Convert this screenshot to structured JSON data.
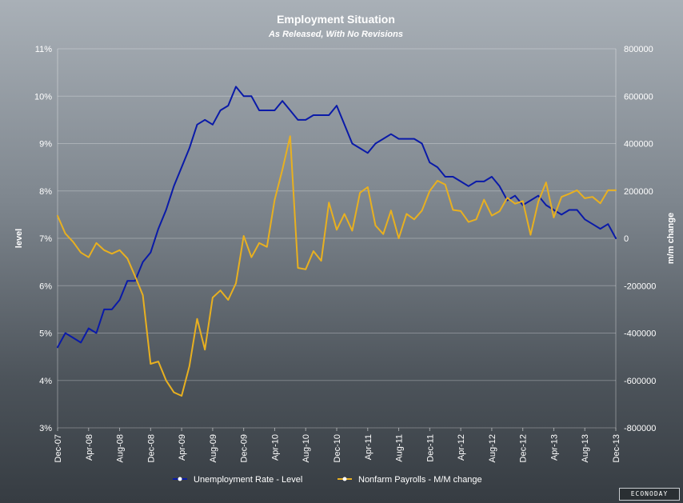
{
  "chart_data": {
    "type": "line",
    "title": "Employment Situation",
    "subtitle": "As Released, With No Revisions",
    "ylabel_left": "level",
    "ylabel_right": "m/m change",
    "ylim_left": [
      3,
      11
    ],
    "ylim_right": [
      -800000,
      800000
    ],
    "yticks_left": [
      "3%",
      "4%",
      "5%",
      "6%",
      "7%",
      "8%",
      "9%",
      "10%",
      "11%"
    ],
    "yticks_right": [
      "-800000",
      "-600000",
      "-400000",
      "-200000",
      "0",
      "200000",
      "400000",
      "600000",
      "800000"
    ],
    "x_ticks": [
      "Dec-07",
      "Apr-08",
      "Aug-08",
      "Dec-08",
      "Apr-09",
      "Aug-09",
      "Dec-09",
      "Apr-10",
      "Aug-10",
      "Dec-10",
      "Apr-11",
      "Aug-11",
      "Dec-11",
      "Apr-12",
      "Aug-12",
      "Dec-12",
      "Apr-13",
      "Aug-13",
      "Dec-13"
    ],
    "x_start": "Dec-07",
    "grid": true,
    "legend_position": "bottom",
    "series": [
      {
        "name": "Unemployment Rate - Level",
        "axis": "left",
        "color": "#0a1aa8",
        "values": [
          4.7,
          5.0,
          4.9,
          4.8,
          5.1,
          5.0,
          5.5,
          5.5,
          5.7,
          6.1,
          6.1,
          6.5,
          6.7,
          7.2,
          7.6,
          8.1,
          8.5,
          8.9,
          9.4,
          9.5,
          9.4,
          9.7,
          9.8,
          10.2,
          10.0,
          10.0,
          9.7,
          9.7,
          9.7,
          9.9,
          9.7,
          9.5,
          9.5,
          9.6,
          9.6,
          9.6,
          9.8,
          9.4,
          9.0,
          8.9,
          8.8,
          9.0,
          9.1,
          9.2,
          9.1,
          9.1,
          9.1,
          9.0,
          8.6,
          8.5,
          8.3,
          8.3,
          8.2,
          8.1,
          8.2,
          8.2,
          8.3,
          8.1,
          7.8,
          7.9,
          7.7,
          7.8,
          7.9,
          7.7,
          7.6,
          7.5,
          7.6,
          7.6,
          7.4,
          7.3,
          7.2,
          7.3,
          7.0
        ]
      },
      {
        "name": "Nonfarm Payrolls - M/M change",
        "axis": "right",
        "color": "#e8b020",
        "values": [
          95000,
          20000,
          -15000,
          -60000,
          -80000,
          -20000,
          -50000,
          -65000,
          -50000,
          -85000,
          -160000,
          -240000,
          -530000,
          -520000,
          -600000,
          -650000,
          -665000,
          -540000,
          -340000,
          -470000,
          -250000,
          -220000,
          -260000,
          -190000,
          10000,
          -80000,
          -20000,
          -36000,
          162000,
          290000,
          431000,
          -125000,
          -131000,
          -54000,
          -95000,
          151000,
          36000,
          103000,
          32000,
          192000,
          216000,
          54000,
          18000,
          117000,
          0,
          103000,
          80000,
          117000,
          200000,
          243000,
          227000,
          120000,
          115000,
          69000,
          80000,
          163000,
          96000,
          114000,
          171000,
          146000,
          157000,
          15000,
          155000,
          236000,
          88000,
          175000,
          188000,
          203000,
          169000,
          175000,
          148000,
          203000,
          203000
        ]
      }
    ]
  },
  "legend": {
    "items": [
      {
        "label": "Unemployment Rate - Level",
        "color": "#0a1aa8"
      },
      {
        "label": "Nonfarm Payrolls - M/M change",
        "color": "#e8b020"
      }
    ]
  },
  "logo": {
    "text": "ECONODAY"
  }
}
